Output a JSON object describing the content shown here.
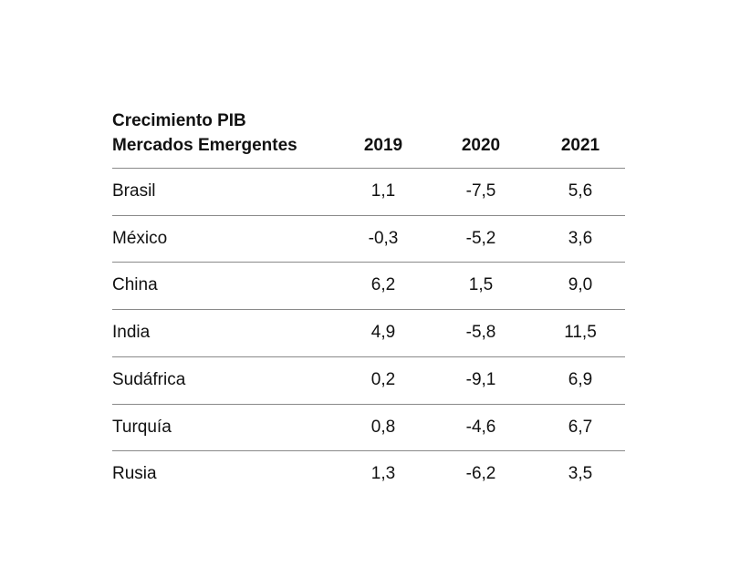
{
  "chart_data": {
    "type": "table",
    "title_lines": [
      "Crecimiento PIB",
      "Mercados Emergentes"
    ],
    "columns": [
      "2019",
      "2020",
      "2021"
    ],
    "rows": [
      {
        "label": "Brasil",
        "values": [
          "1,1",
          "-7,5",
          "5,6"
        ]
      },
      {
        "label": "México",
        "values": [
          "-0,3",
          "-5,2",
          "3,6"
        ]
      },
      {
        "label": "China",
        "values": [
          "6,2",
          "1,5",
          "9,0"
        ]
      },
      {
        "label": "India",
        "values": [
          "4,9",
          "-5,8",
          "11,5"
        ]
      },
      {
        "label": "Sudáfrica",
        "values": [
          "0,2",
          "-9,1",
          "6,9"
        ]
      },
      {
        "label": "Turquía",
        "values": [
          "0,8",
          "-4,6",
          "6,7"
        ]
      },
      {
        "label": "Rusia",
        "values": [
          "1,3",
          "-6,2",
          "3,5"
        ]
      }
    ]
  }
}
